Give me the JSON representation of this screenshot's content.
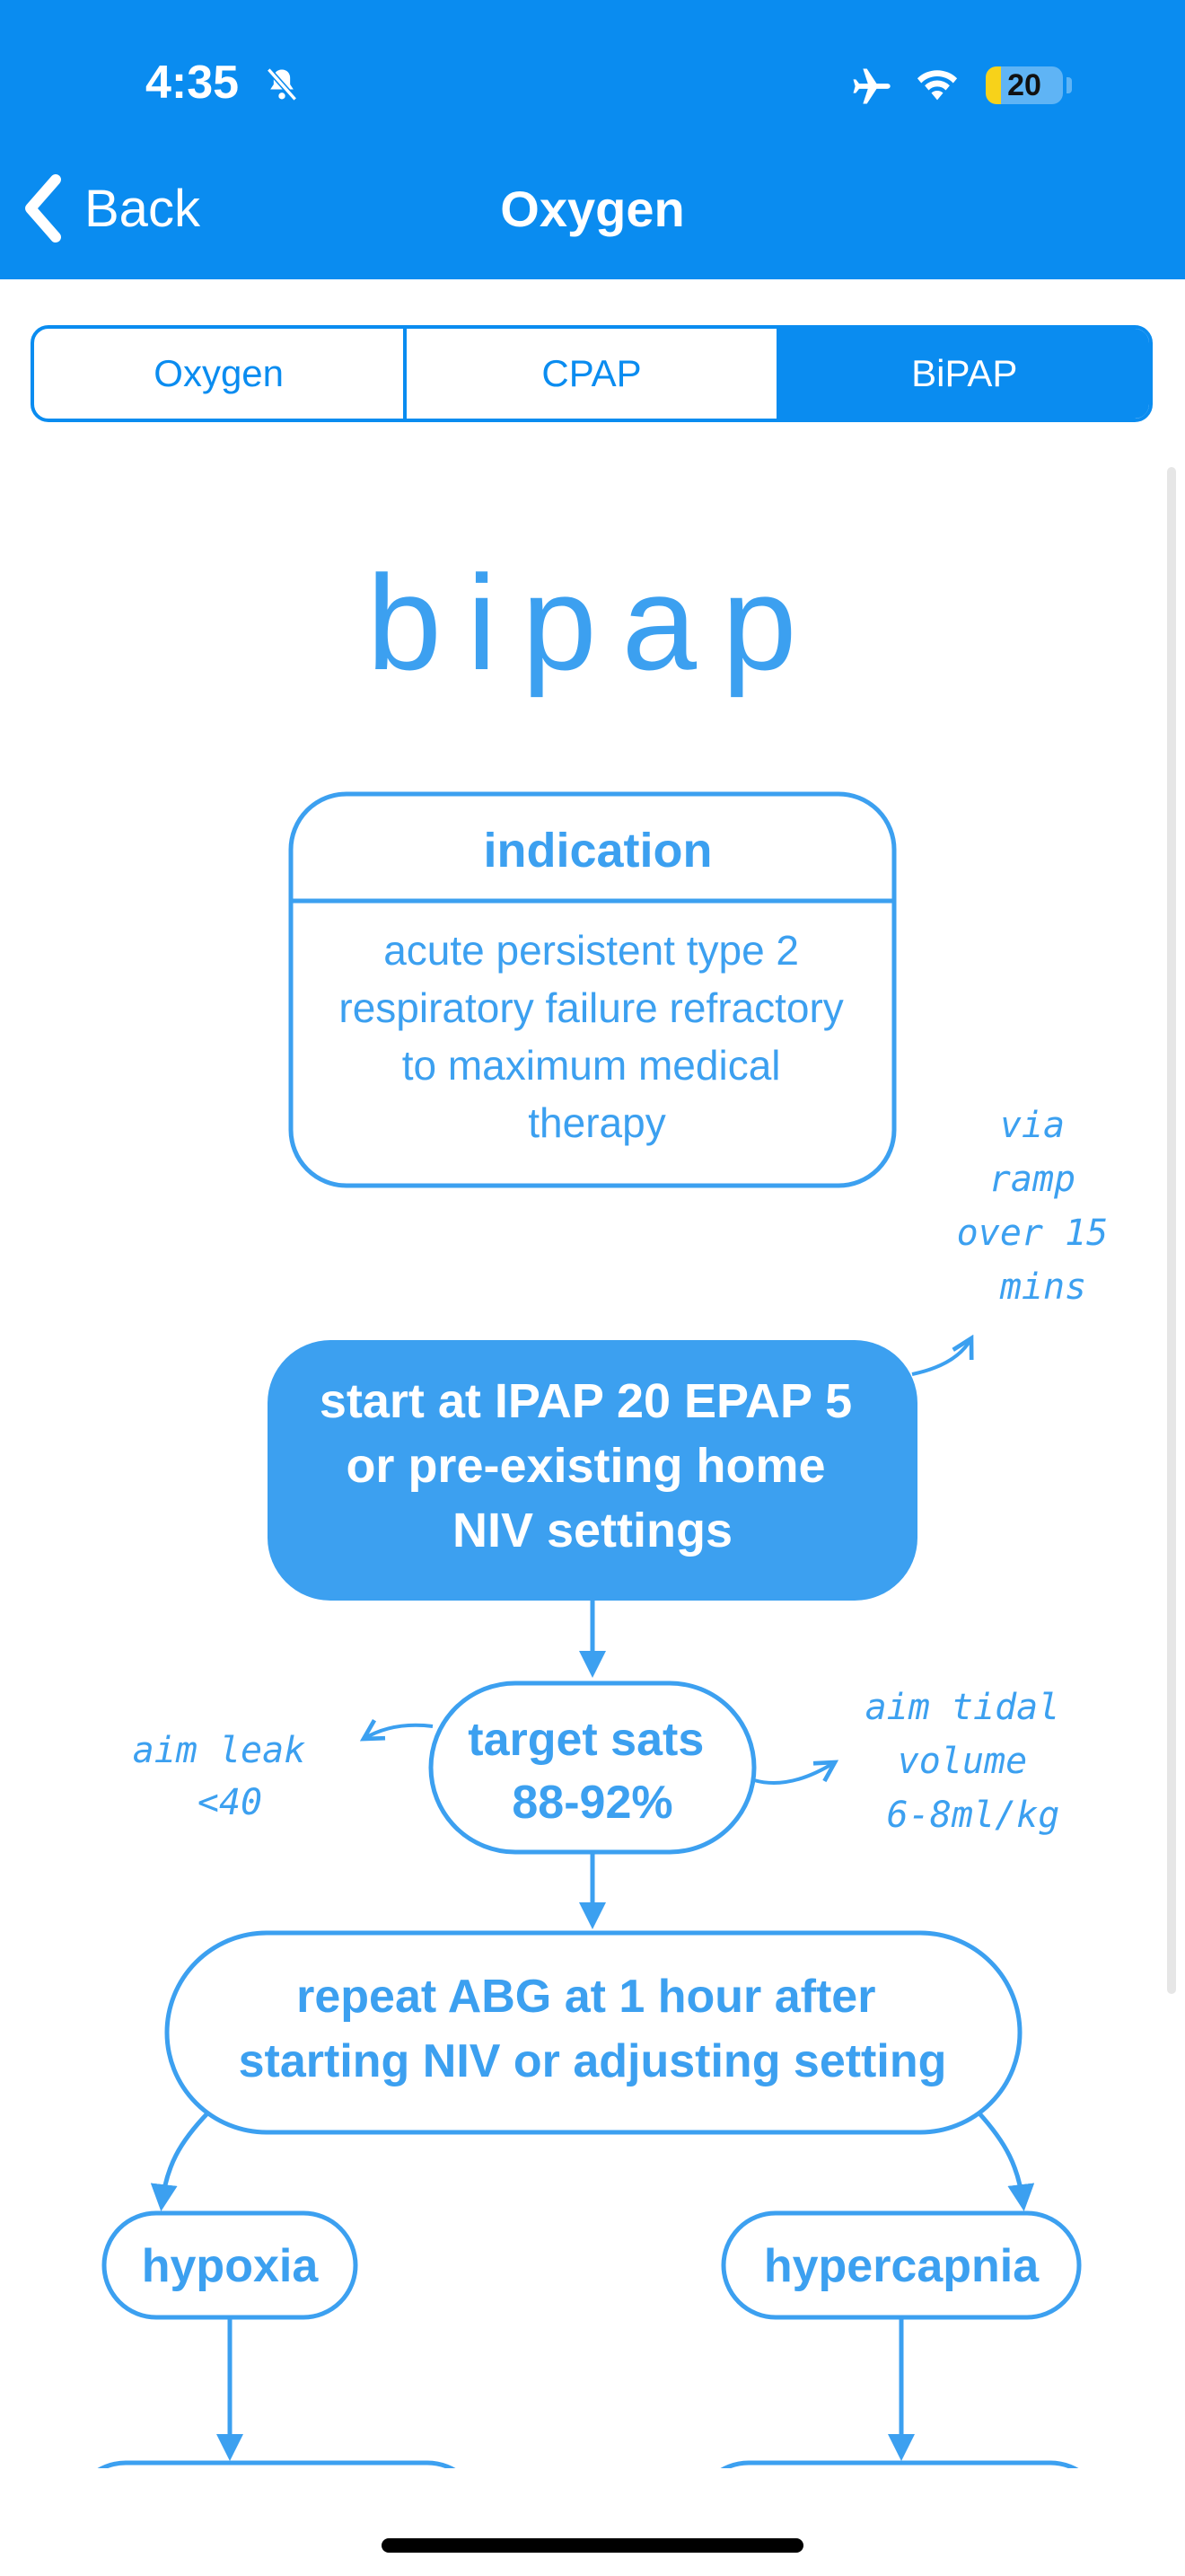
{
  "status_bar": {
    "time": "4:35",
    "battery_level": "20",
    "battery_fraction": 0.2,
    "icons": [
      "bell-slash-icon",
      "airplane-icon",
      "wifi-icon",
      "battery-icon"
    ]
  },
  "nav": {
    "back_label": "Back",
    "title": "Oxygen"
  },
  "tabs": [
    {
      "label": "Oxygen",
      "selected": false
    },
    {
      "label": "CPAP",
      "selected": false
    },
    {
      "label": "BiPAP",
      "selected": true
    }
  ],
  "colors": {
    "brand_blue": "#0a8cf0",
    "chart_blue": "#3ca0f0",
    "battery_yellow": "#f7d21a"
  },
  "flowchart": {
    "heading": "bipap",
    "indication": {
      "title": "indication",
      "lines": [
        "acute persistent type 2",
        "respiratory failure refractory",
        "to maximum medical",
        "therapy"
      ]
    },
    "start": {
      "lines": [
        "start at IPAP 20 EPAP 5",
        "or pre-existing home",
        "NIV settings"
      ]
    },
    "start_note": [
      "via",
      "ramp",
      "over 15",
      "mins"
    ],
    "target": {
      "lines": [
        "target sats",
        "88-92%"
      ]
    },
    "target_note_left": [
      "aim leak",
      "<40"
    ],
    "target_note_right": [
      "aim tidal",
      "volume",
      "6-8ml/kg"
    ],
    "repeat": {
      "lines": [
        "repeat ABG at 1 hour after",
        "starting NIV or adjusting setting"
      ]
    },
    "hypoxia": "hypoxia",
    "hypercapnia": "hypercapnia"
  }
}
